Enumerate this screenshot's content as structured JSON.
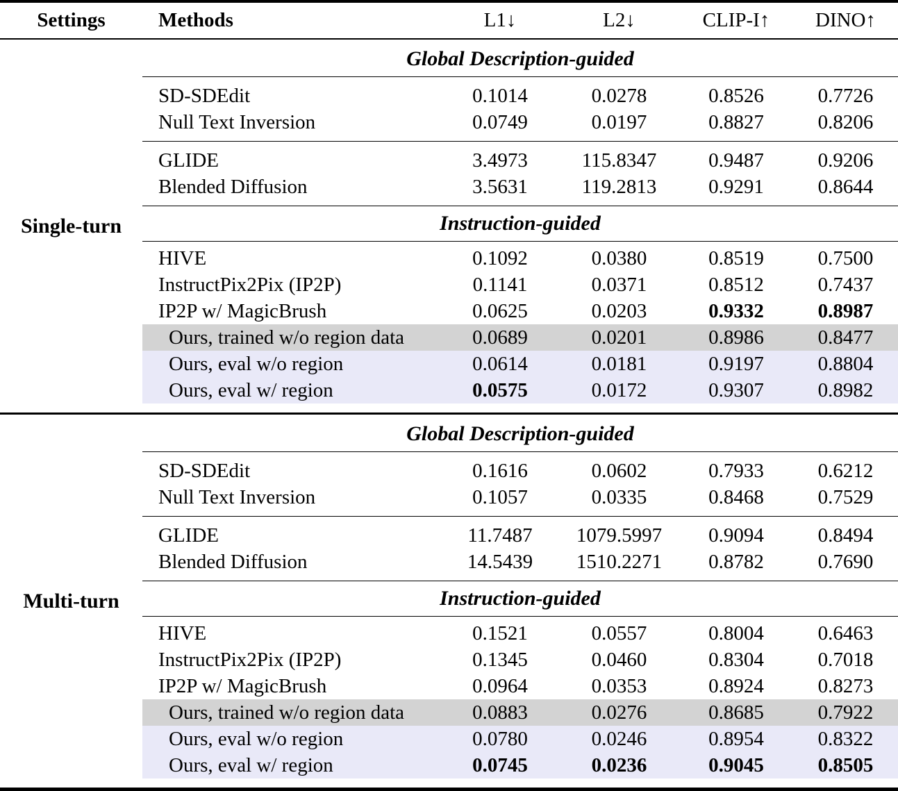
{
  "colors": {
    "background": "#ffffff",
    "text": "#000000",
    "rule": "#000000",
    "row_gray_bg": "#d3d3d3",
    "row_lavender_bg": "#e9e9f8"
  },
  "header": {
    "settings": "Settings",
    "methods": "Methods",
    "metrics": [
      "L1↓",
      "L2↓",
      "CLIP-I↑",
      "DINO↑"
    ]
  },
  "sections": [
    {
      "label": "Single-turn",
      "global_header": "Global Description-guided",
      "instruction_header": "Instruction-guided",
      "global_rows_a": [
        {
          "method": "SD-SDEdit",
          "values": [
            "0.1014",
            "0.0278",
            "0.8526",
            "0.7726"
          ]
        },
        {
          "method": "Null Text Inversion",
          "values": [
            "0.0749",
            "0.0197",
            "0.8827",
            "0.8206"
          ]
        }
      ],
      "global_rows_b": [
        {
          "method": "GLIDE",
          "values": [
            "3.4973",
            "115.8347",
            "0.9487",
            "0.9206"
          ]
        },
        {
          "method": "Blended Diffusion",
          "values": [
            "3.5631",
            "119.2813",
            "0.9291",
            "0.8644"
          ]
        }
      ],
      "instruction_rows": [
        {
          "method": "HIVE",
          "values": [
            "0.1092",
            "0.0380",
            "0.8519",
            "0.7500"
          ]
        },
        {
          "method": "InstructPix2Pix (IP2P)",
          "values": [
            "0.1141",
            "0.0371",
            "0.8512",
            "0.7437"
          ]
        },
        {
          "method": "IP2P w/ MagicBrush",
          "values": [
            "0.0625",
            "0.0203",
            "0.9332",
            "0.8987"
          ]
        }
      ],
      "ours_rows": [
        {
          "method": "Ours, trained w/o region data",
          "values": [
            "0.0689",
            "0.0201",
            "0.8986",
            "0.8477"
          ]
        },
        {
          "method": "Ours, eval w/o region",
          "values": [
            "0.0614",
            "0.0181",
            "0.9197",
            "0.8804"
          ]
        },
        {
          "method": "Ours, eval w/ region",
          "values": [
            "0.0575",
            "0.0172",
            "0.9307",
            "0.8982"
          ]
        }
      ]
    },
    {
      "label": "Multi-turn",
      "global_header": "Global Description-guided",
      "instruction_header": "Instruction-guided",
      "global_rows_a": [
        {
          "method": "SD-SDEdit",
          "values": [
            "0.1616",
            "0.0602",
            "0.7933",
            "0.6212"
          ]
        },
        {
          "method": "Null Text Inversion",
          "values": [
            "0.1057",
            "0.0335",
            "0.8468",
            "0.7529"
          ]
        }
      ],
      "global_rows_b": [
        {
          "method": "GLIDE",
          "values": [
            "11.7487",
            "1079.5997",
            "0.9094",
            "0.8494"
          ]
        },
        {
          "method": "Blended Diffusion",
          "values": [
            "14.5439",
            "1510.2271",
            "0.8782",
            "0.7690"
          ]
        }
      ],
      "instruction_rows": [
        {
          "method": "HIVE",
          "values": [
            "0.1521",
            "0.0557",
            "0.8004",
            "0.6463"
          ]
        },
        {
          "method": "InstructPix2Pix (IP2P)",
          "values": [
            "0.1345",
            "0.0460",
            "0.8304",
            "0.7018"
          ]
        },
        {
          "method": "IP2P w/ MagicBrush",
          "values": [
            "0.0964",
            "0.0353",
            "0.8924",
            "0.8273"
          ]
        }
      ],
      "ours_rows": [
        {
          "method": "Ours, trained w/o region data",
          "values": [
            "0.0883",
            "0.0276",
            "0.8685",
            "0.7922"
          ]
        },
        {
          "method": "Ours, eval w/o region",
          "values": [
            "0.0780",
            "0.0246",
            "0.8954",
            "0.8322"
          ]
        },
        {
          "method": "Ours, eval w/ region",
          "values": [
            "0.0745",
            "0.0236",
            "0.9045",
            "0.8505"
          ]
        }
      ]
    }
  ]
}
